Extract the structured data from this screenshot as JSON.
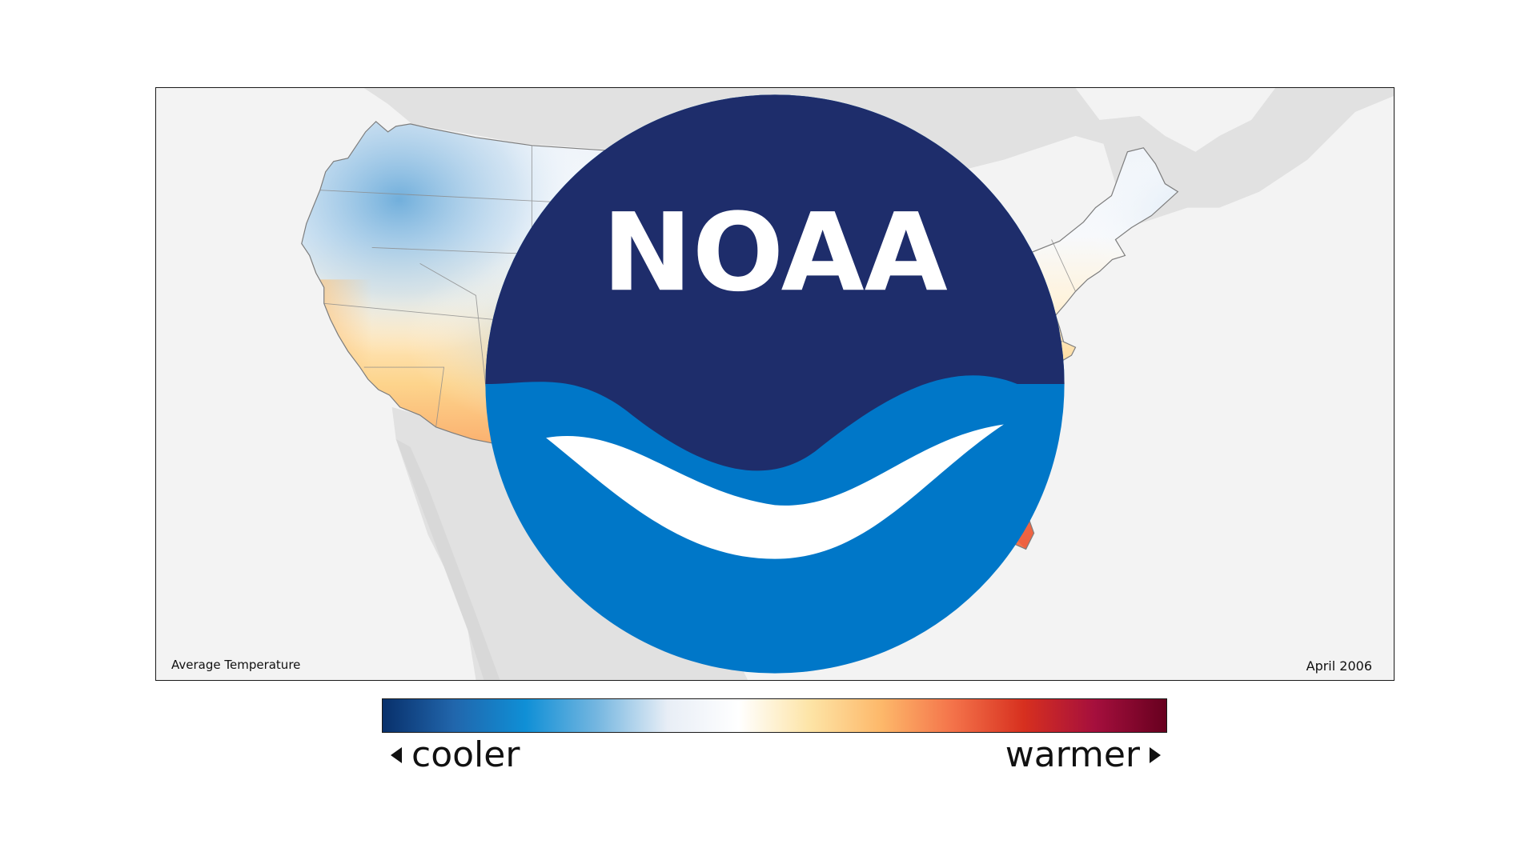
{
  "map": {
    "title": "Average Temperature",
    "date": "April 2006",
    "logo": {
      "text": "NOAA",
      "icon": "noaa-logo-icon"
    }
  },
  "legend": {
    "low_label": "cooler",
    "high_label": "warmer",
    "colors": [
      "#08306b",
      "#2166ac",
      "#0f8fd6",
      "#74b6e0",
      "#e8eef6",
      "#ffffff",
      "#fde4a6",
      "#fdb86a",
      "#f4734a",
      "#d7301f",
      "#a50f3d",
      "#67001f"
    ]
  },
  "colors": {
    "background": "#f3f3f3",
    "land_outside": "#e2e2e2",
    "state_lines": "#8a8a8a",
    "noaa_blue": "#0077c8",
    "noaa_navy": "#1e2d6b"
  }
}
